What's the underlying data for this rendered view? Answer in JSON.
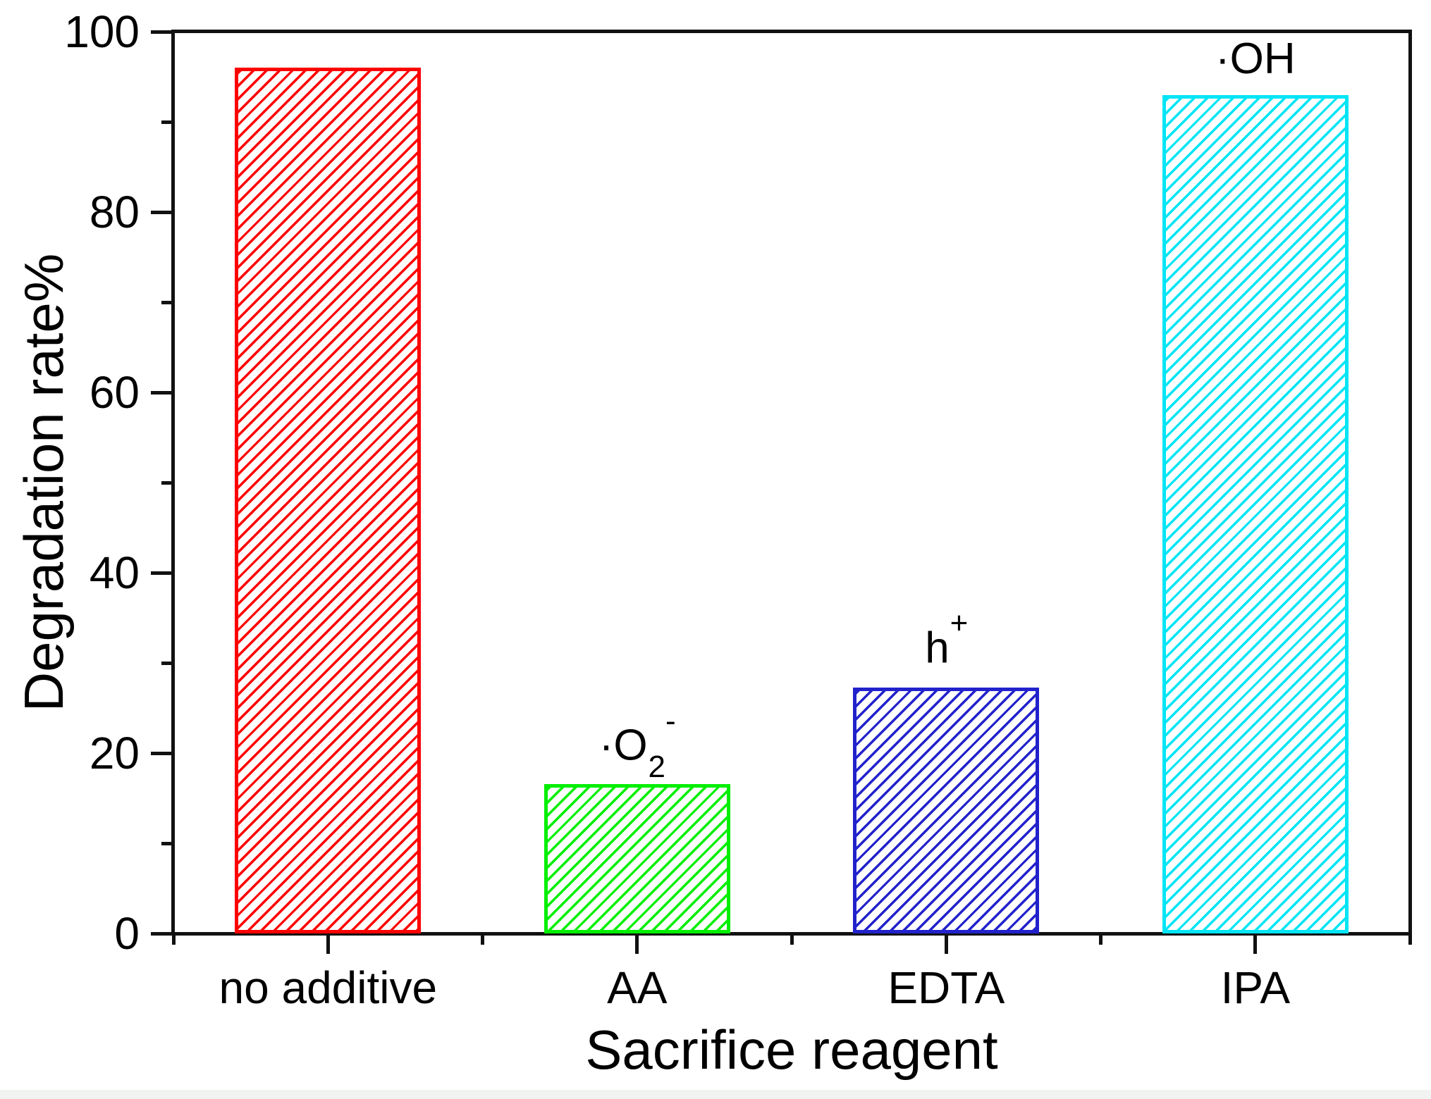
{
  "figure": {
    "background": "#ffffff",
    "footer_strip_color": "#f1f3f1"
  },
  "chart_data": {
    "type": "bar",
    "title": "",
    "xlabel": "Sacrifice reagent",
    "ylabel": "Degradation rate%",
    "categories": [
      "no additive",
      "AA",
      "EDTA",
      "IPA"
    ],
    "values": [
      96,
      16.6,
      27.3,
      93
    ],
    "bar_colors": [
      "#ff0000",
      "#00ee00",
      "#2222cc",
      "#00e5f5"
    ],
    "bar_hatch": "forward-diagonal",
    "ylim": [
      0,
      100
    ],
    "ytick_major": [
      0,
      20,
      40,
      60,
      80,
      100
    ],
    "ytick_labels": [
      "0",
      "20",
      "40",
      "60",
      "80",
      "100"
    ],
    "ytick_minor": [
      10,
      30,
      50,
      70,
      90
    ],
    "grid": false,
    "legend": null,
    "frame": "full-box",
    "annotations": [
      {
        "name": "no-additive-annotation",
        "main": "",
        "sub": "",
        "sup": ""
      },
      {
        "name": "superoxide-radical-annotation",
        "main": "·O",
        "sub": "2",
        "sup": "-"
      },
      {
        "name": "hole-annotation",
        "main": "h",
        "sub": "",
        "sup": "+"
      },
      {
        "name": "hydroxyl-radical-annotation",
        "main": "·OH",
        "sub": "",
        "sup": ""
      }
    ]
  }
}
